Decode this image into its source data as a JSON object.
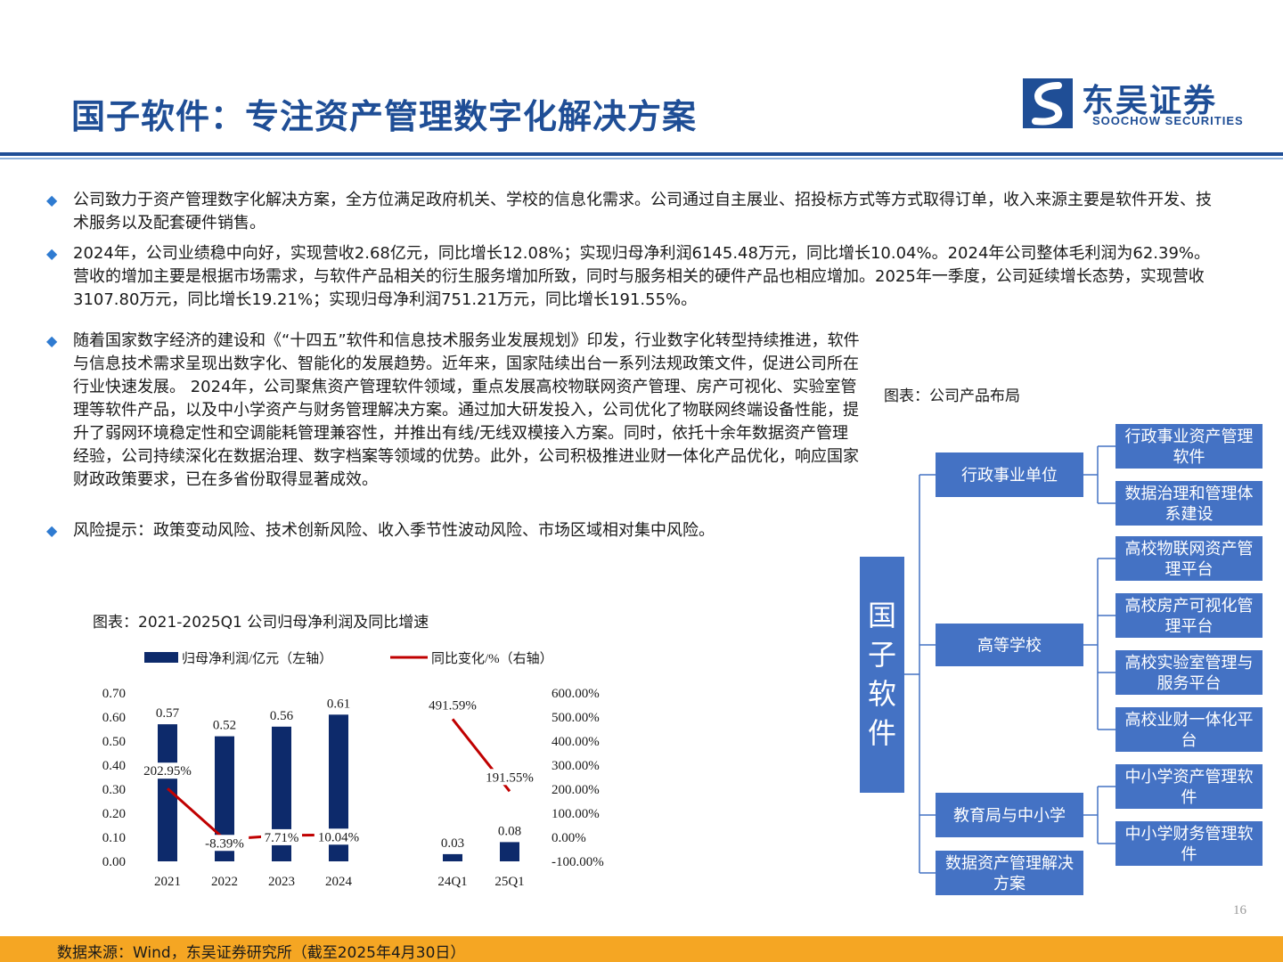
{
  "title": "国子软件：专注资产管理数字化解决方案",
  "logo": {
    "cn": "东吴证券",
    "en": "SOOCHOW SECURITIES",
    "brand_color": "#1f4e96"
  },
  "bullets": [
    "公司致力于资产管理数字化解决方案，全方位满足政府机关、学校的信息化需求。公司通过自主展业、招投标方式等方式取得订单，收入来源主要是软件开发、技术服务以及配套硬件销售。",
    "2024年，公司业绩稳中向好，实现营收2.68亿元，同比增长12.08%；实现归母净利润6145.48万元，同比增长10.04%。2024年公司整体毛利润为62.39%。营收的增加主要是根据市场需求，与软件产品相关的衍生服务增加所致，同时与服务相关的硬件产品也相应增加。2025年一季度，公司延续增长态势，实现营收3107.80万元，同比增长19.21%；实现归母净利润751.21万元，同比增长191.55%。",
    "随着国家数字经济的建设和《“十四五”软件和信息技术服务业发展规划》印发，行业数字化转型持续推进，软件与信息技术需求呈现出数字化、智能化的发展趋势。近年来，国家陆续出台一系列法规政策文件，促进公司所在行业快速发展。 2024年，公司聚焦资产管理软件领域，重点发展高校物联网资产管理、房产可视化、实验室管理等软件产品，以及中小学资产与财务管理解决方案。通过加大研发投入，公司优化了物联网终端设备性能，提升了弱网环境稳定性和空调能耗管理兼容性，并推出有线/无线双模接入方案。同时，依托十余年数据资产管理经验，公司持续深化在数据治理、数字档案等领域的优势。此外，公司积极推进业财一体化产品优化，响应国家财政政策要求，已在多省份取得显著成效。",
    "风险提示：政策变动风险、技术创新风险、收入季节性波动风险、市场区域相对集中风险。"
  ],
  "chart_caption": "图表：2021-2025Q1 公司归母净利润及同比增速",
  "chart_data": {
    "type": "bar",
    "categories": [
      "2021",
      "2022",
      "2023",
      "2024",
      "24Q1",
      "25Q1"
    ],
    "series": [
      {
        "name": "归母净利润/亿元（左轴）",
        "type": "bar",
        "axis": "left",
        "values": [
          0.57,
          0.52,
          0.56,
          0.61,
          0.03,
          0.08
        ],
        "labels": [
          "0.57",
          "0.52",
          "0.56",
          "0.61",
          "0.03",
          "0.08"
        ],
        "color": "#0d2a6b"
      },
      {
        "name": "同比变化/%（右轴）",
        "type": "line",
        "axis": "right",
        "values": [
          202.95,
          -8.39,
          7.71,
          10.04,
          491.59,
          191.55
        ],
        "labels": [
          "202.95%",
          "-8.39%",
          "7.71%",
          "10.04%",
          "491.59%",
          "191.55%"
        ],
        "color": "#c00000"
      }
    ],
    "left_ticks": [
      "0.00",
      "0.10",
      "0.20",
      "0.30",
      "0.40",
      "0.50",
      "0.60",
      "0.70"
    ],
    "right_ticks": [
      "-100.00%",
      "0.00%",
      "100.00%",
      "200.00%",
      "300.00%",
      "400.00%",
      "500.00%",
      "600.00%"
    ],
    "ylim_left": [
      0,
      0.7
    ],
    "ylim_right": [
      -100,
      600
    ],
    "legend_position": "top"
  },
  "tree_caption": "图表：公司产品布局",
  "tree": {
    "root": "国子软件",
    "branches": [
      {
        "label": "行政事业单位",
        "children": [
          [
            "行政事业资产管理",
            "软件"
          ],
          [
            "数据治理和管理体",
            "系建设"
          ]
        ]
      },
      {
        "label": "高等学校",
        "children": [
          [
            "高校物联网资产管",
            "理平台"
          ],
          [
            "高校房产可视化管",
            "理平台"
          ],
          [
            "高校实验室管理与",
            "服务平台"
          ],
          [
            "高校业财一体化平",
            "台"
          ]
        ]
      },
      {
        "label": "教育局与中小学",
        "children": [
          [
            "中小学资产管理软",
            "件"
          ],
          [
            "中小学财务管理软",
            "件"
          ]
        ]
      },
      {
        "label": [
          "数据资产管理解决",
          "方案"
        ],
        "children": []
      }
    ],
    "node_color": "#4472c4"
  },
  "page_number": "16",
  "footer": "数据来源：Wind，东吴证券研究所（截至2025年4月30日）",
  "footer_color": "#f5a623"
}
